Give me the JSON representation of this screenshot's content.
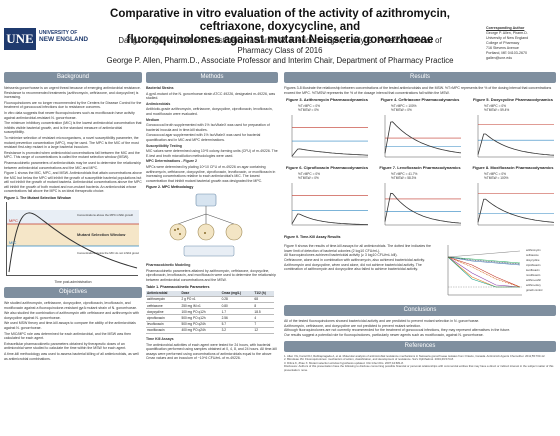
{
  "header": {
    "logo_abbr": "UNE",
    "logo_line1": "UNIVERSITY OF",
    "logo_line2": "NEW ENGLAND",
    "title_line1": "Comparative in vitro evaluation of the activity of azithromycin, ceftriaxone, doxycycline, and",
    "title_line2": "fluoroquinolones against mutant Neisseria gonorrhoeae",
    "authors_line1": "Dang X. Nguyen, Katie S. Eastman, Katharine R. Freudenberger, Emily G. Prescott, Doctor of Pharmacy Class of 2016",
    "authors_line2": "George P. Allen, Pharm.D., Associate Professor and Interim Chair, Department of Pharmacy Practice",
    "contact_head": "Corresponding Author",
    "contact_lines": [
      "George P. Allen, Pharm.D.",
      "University of New England",
      "College of Pharmacy",
      "716 Stevens Avenue",
      "Portland, ME 04103-2670",
      "gallen@une.edu"
    ]
  },
  "background": {
    "heading": "Background",
    "bullets": [
      "Neisseria gonorrhoeae is an urgent threat because of emerging antimicrobial resistance. Resistance to recommended treatments (azithromycin, ceftriaxone, and doxycycline) is increasing.",
      "Fluoroquinolones are no longer recommended by the Centers for Disease Control for the treatment of gonococcal infections due to resistance concerns.",
      "In vitro data suggests that newer fluoroquinolones such as moxifloxacin have activity against antimicrobial-resistant N. gonorrhoeae.",
      "The minimum inhibitory concentration (MIC) is the lowest antimicrobial concentration that inhibits visible bacterial growth, and is the standard measure of antimicrobial susceptibility.",
      "To minimize selection of resistant microorganisms, a novel susceptibility parameter, the mutant prevention concentration (MPC), may be used. The MPC is the MIC of the most resistant first-step mutant in a large bacterial inoculum.",
      "Resistance is promoted when antimicrobial concentrations fall between the MIC and the MPC. This range of concentrations is called the mutant selection window (MSW).",
      "Pharmacokinetic parameters of antimicrobials may be used to determine the relationship between antimicrobial concentrations and the MIC and MPC.",
      "Figure 1 shows the MIC, MPC, and MSW. Antimicrobials that attain concentrations above the MIC but below the MPC will inhibit the growth of susceptible bacterial populations but will not inhibit the growth of mutant bacteria. Antimicrobial concentrations above the MPC will inhibit the growth of both mutant and non-mutant bacteria. An antimicrobial whose concentrations fall above the MPC is an ideal therapeutic choice."
    ],
    "fig1_caption": "Figure 1. The Mutant Selection Window",
    "fig1_label_top": "Concentrations above the MPC inhibit growth of both mutant and non-mutant bacteria",
    "fig1_label_mid": "Mutant Selection Window",
    "fig1_label_low": "Concentrations below the MIC do not inhibit growth",
    "fig1_xlabel": "Time post-administration",
    "fig1_ylabel": "Drug concentration",
    "fig1_mpc": "MPC",
    "fig1_mic": "MIC"
  },
  "objectives": {
    "heading": "Objectives",
    "bullets": [
      "We studied azithromycin, ceftriaxone, doxycycline, ciprofloxacin, levofloxacin, and moxifloxacin against a fluoroquinolone-resistant gyrA mutant strain of N. gonorrhoeae.",
      "We also studied the combination of azithromycin with ceftriaxone and azithromycin with doxycycline against N. gonorrhoeae.",
      "We used MSW theory and time-kill assays to compare the ability of the antimicrobials against N. gonorrhoeae.",
      "The MIC/MPC role was determined for each antimicrobial, and the MSW was then calculated for each agent.",
      "Extracellular pharmacokinetic parameters obtained by therapeutic doses of an antimicrobial were studied to calculate the time within the MSW for each agent.",
      "A time-kill methodology was used to assess bacterial killing of all antimicrobials, as well as antimicrobial combinations."
    ]
  },
  "methods": {
    "heading": "Methods",
    "bacterial_strains_head": "Bacterial Strains",
    "bacterial_strains": "A gyrA mutant of the N. gonorrhoeae strain ATCC 49226, designated m-49226, was studied.",
    "antimicrobials_head": "Antimicrobials",
    "antimicrobials": "Antibiotic-grade azithromycin, ceftriaxone, doxycycline, ciprofloxacin, levofloxacin, and moxifloxacin were evaluated.",
    "medium_head": "Medium",
    "medium_lines": [
      "Gonococcal broth supplemented with 1% IsoVitaleX was used for preparation of bacterial inocula and in time-kill studies.",
      "Gonococcal agar supplemented with 1% IsoVitaleX was used for bacterial quantification and in MIC and MPC determinations."
    ],
    "susc_head": "Susceptibility Testing",
    "susc": "MIC values were determined using 10^5 colony-forming units (CFU) of m-49226. The E-test and broth microdilution methodologies were used.",
    "mpc_head": "MPC Determinations - Figure 2",
    "mpc": "MPCs were determined by plating 10^10 CFU of m-49226 on agar containing azithromycin, ceftriaxone, doxycycline, ciprofloxacin, levofloxacin, or moxifloxacin in increasing concentrations relative to each antimicrobial's MIC. The lowest concentration that inhibit mutant bacterial growth was designated the MPC.",
    "fig2_caption": "Figure 2. MPC Methodology",
    "pd_head": "Pharmacokinetic Modeling",
    "pd": "Pharmacokinetic parameters attained by azithromycin, ceftriaxone, doxycycline, ciprofloxacin, levofloxacin, and moxifloxacin were used to determine the relationship between antimicrobial concentrations and the MSW.",
    "table_caption": "Table 1. Pharmacokinetic Parameters",
    "table_headers": [
      "Antimicrobial",
      "Dose",
      "Cmax (mg/L)",
      "T1/2 (h)"
    ],
    "table_rows": [
      [
        "azithromycin",
        "2 g PO x1",
        "0.28",
        "68"
      ],
      [
        "ceftriaxone",
        "250 mg IM x1",
        "0.80",
        "8"
      ],
      [
        "doxycycline",
        "100 mg PO q12h",
        "1.7",
        "18.5"
      ],
      [
        "ciprofloxacin",
        "500 mg PO q12h",
        "2.56",
        "4"
      ],
      [
        "levofloxacin",
        "500 mg PO q24h",
        "5.7",
        "7"
      ],
      [
        "moxifloxacin",
        "400 mg PO q24h",
        "3.2",
        "12"
      ]
    ],
    "tka_head": "Time Kill Assays",
    "tka": "The antimicrobial activities of each agent were tested for 24 hours, with bacterial quantification performed using samples obtained at 0, 4, 8, and 24 hours. All time-kill assays were performed using concentrations of antimicrobials equal to the above Cmax values and an inoculum of ~10^6 CFU/mL of m-49226."
  },
  "results": {
    "heading": "Results",
    "intro_lines": [
      "Figures 3-8 illustrate the relationship between concentrations of the tested antimicrobials and the MSW. %T>MPC represents the % of the dosing interval that concentrations exceed the MPC. %TMSW represents the % of the dosage interval that concentrations fall within the MSW."
    ],
    "charts": [
      {
        "title": "Figure 3. Azithromycin Pharmacodynamics",
        "ann1": "%T>MPC = 0%",
        "ann2": "%TMSW = 0%"
      },
      {
        "title": "Figure 4. Ceftriaxone Pharmacodynamics",
        "ann1": "%T>MPC = 100%",
        "ann2": "%TMSW = 0%"
      },
      {
        "title": "Figure 5. Doxycycline Pharmacodynamics",
        "ann1": "%T>MPC = 0%",
        "ann2": "%TMSW = 59.4%"
      },
      {
        "title": "Figure 6. Ciprofloxacin Pharmacodynamics",
        "ann1": "%T>MPC = 0%",
        "ann2": "%TMSW = 0%"
      },
      {
        "title": "Figure 7. Levofloxacin Pharmacodynamics",
        "ann1": "%T>MPC = 41.7%",
        "ann2": "%TMSW = 58.3%"
      },
      {
        "title": "Figure 8. Moxifloxacin Pharmacodynamics",
        "ann1": "%T>MPC = 0%",
        "ann2": "%TMSW = 100%"
      }
    ],
    "tk_caption": "Figure 9. Time-Kill Assay Results",
    "tk_bullets": [
      "Figure 9 shows the results of time-kill assays for all antimicrobials. The dotted line indicates the lower limit of detection of bacterial colonies (2 log10 CFU/mL).",
      "All fluoroquinolones achieved bactericidal activity (≥ 3 log10 CFU/mL kill).",
      "Ceftriaxone, alone and in combination with azithromycin, also achieved bactericidal activity.",
      "Azithromycin and doxycycline, when used alone, did not achieve bactericidal activity. The combination of azithromycin and doxycycline also failed to achieve bactericidal activity."
    ],
    "tk_legend": [
      "azithromycin",
      "ceftriaxone",
      "doxycycline",
      "ciprofloxacin",
      "levofloxacin",
      "moxifloxacin",
      "azithro+ceftri",
      "azithro+doxy",
      "growth control"
    ]
  },
  "conclusions": {
    "heading": "Conclusions",
    "bullets": [
      "All of the tested fluoroquinolones showed bactericidal activity and are predicted to prevent mutant selection in N. gonorrhoeae.",
      "Azithromycin, ceftriaxone, and doxycycline are not predicted to prevent mutant selection.",
      "Although fluoroquinolones are not currently recommended for the treatment of gonococcal infections, they may represent alternatives in the future.",
      "Our results suggest a potential role for fluoroquinolones, particularly newer agents such as moxifloxacin, against N. gonorrhoeae."
    ]
  },
  "references": {
    "heading": "References",
    "items": [
      "1. Allen VG, Farrell DJ, Rebbapragada A, et al. Molecular analysis of antimicrobial resistance mechanisms in Neisseria gonorrhoeae isolates from Ontario, Canada. Antimicrob Agents Chemother. 2011;55:703-12.",
      "2. Blondeau JM. Fluoroquinolones: mechanism of action, classification, and development of resistance. Surv Ophthalmol. 2004;49:S73-8.",
      "3. Drlica K, Zhao X. Mutant selection window hypothesis updated. Clin Infect Dis. 2007;44:681-8."
    ],
    "disclosure": "Disclosure: Authors of this presentation have the following to disclose concerning possible financial or personal relationships with commercial entities that may have a direct or indirect interest in the subject matter of this presentation: none."
  },
  "colors": {
    "header_blue": "#1f3a6e",
    "section_gray": "#7f8f9f",
    "mpc_line": "#c0392b",
    "mic_line": "#2e86c1",
    "conc_curve": "#333333"
  }
}
